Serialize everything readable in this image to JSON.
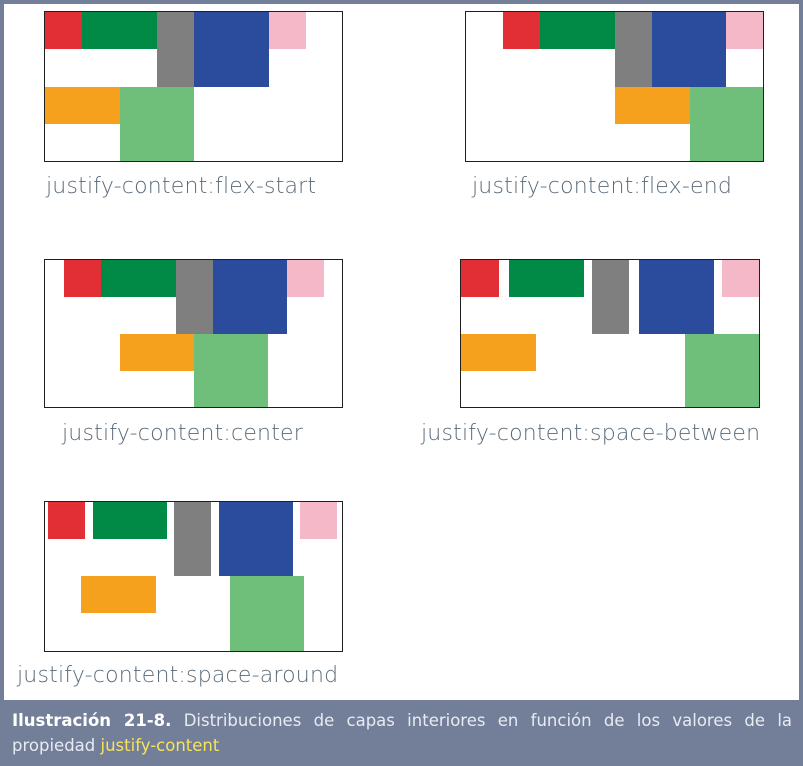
{
  "diagram": {
    "panels": [
      {
        "id": "flex-start",
        "label": "justify-content:flex-start"
      },
      {
        "id": "flex-end",
        "label": "justify-content:flex-end"
      },
      {
        "id": "center",
        "label": "justify-content:center"
      },
      {
        "id": "space-between",
        "label": "justify-content:space-between"
      },
      {
        "id": "space-around",
        "label": "justify-content:space-around"
      }
    ],
    "block_colors": {
      "red": "#e22f35",
      "dark_green": "#008a46",
      "gray": "#7f7f7f",
      "blue": "#2b4c9c",
      "pink": "#f4b8c9",
      "orange": "#f5a11e",
      "light_green": "#6fbe7a"
    }
  },
  "caption": {
    "bold": "Ilustración 21-8.",
    "text": " Distribuciones de capas interiores en función de los valores de la propiedad ",
    "highlight": "justify-content"
  }
}
